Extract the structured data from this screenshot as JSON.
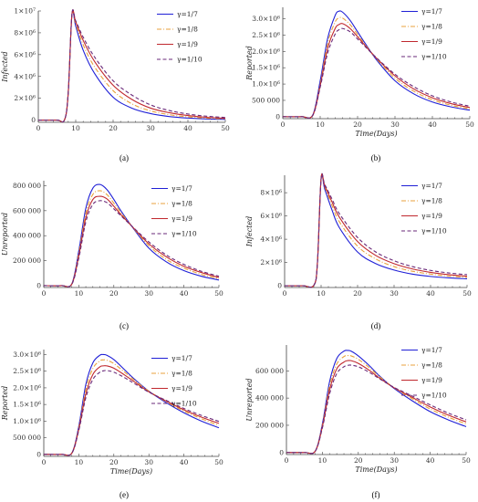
{
  "legend_labels": [
    "γ=1/7",
    "γ=1/8",
    "γ=1/9",
    "γ=1/10"
  ],
  "series_colors": [
    "#1f1fd6",
    "#e8a23c",
    "#c0282e",
    "#6a2a7a"
  ],
  "series_dash": [
    "solid",
    "dash-dot",
    "solid",
    "dash"
  ],
  "chart_data": [
    {
      "panel": "(a)",
      "type": "line",
      "ylabel": "Infected",
      "xlabel": "",
      "xlim": [
        0,
        50
      ],
      "ylim": [
        -200000,
        10000000
      ],
      "xticks": [
        0,
        10,
        20,
        30,
        40,
        50
      ],
      "yticks": [
        {
          "v": 0,
          "t": "0"
        },
        {
          "v": 2000000,
          "t": "2×10⁶"
        },
        {
          "v": 4000000,
          "t": "4×10⁶"
        },
        {
          "v": 6000000,
          "t": "6×10⁶"
        },
        {
          "v": 8000000,
          "t": "8×10⁶"
        },
        {
          "v": 10000000,
          "t": "1×10⁷"
        }
      ],
      "x": [
        0,
        5,
        7,
        8,
        9,
        10,
        12,
        15,
        20,
        25,
        30,
        35,
        40,
        45,
        50
      ],
      "series": [
        {
          "name": "γ=1/7",
          "values": [
            0,
            0,
            20000,
            2500000,
            9700000,
            8600000,
            6400000,
            4300000,
            2100000,
            1100000,
            600000,
            330000,
            190000,
            110000,
            70000
          ]
        },
        {
          "name": "γ=1/8",
          "values": [
            0,
            0,
            20000,
            2500000,
            9700000,
            8800000,
            6900000,
            4900000,
            2700000,
            1500000,
            850000,
            500000,
            300000,
            180000,
            120000
          ]
        },
        {
          "name": "γ=1/9",
          "values": [
            0,
            0,
            20000,
            2500000,
            9700000,
            9000000,
            7300000,
            5400000,
            3200000,
            1900000,
            1100000,
            680000,
            420000,
            260000,
            170000
          ]
        },
        {
          "name": "γ=1/10",
          "values": [
            0,
            0,
            20000,
            2500000,
            9700000,
            9100000,
            7600000,
            5800000,
            3600000,
            2300000,
            1400000,
            880000,
            560000,
            360000,
            240000
          ]
        }
      ]
    },
    {
      "panel": "(b)",
      "type": "line",
      "ylabel": "Reported",
      "xlabel": "Time(Days)",
      "xlim": [
        0,
        50
      ],
      "ylim": [
        -60000,
        3350000
      ],
      "xticks": [
        0,
        10,
        20,
        30,
        40,
        50
      ],
      "yticks": [
        {
          "v": 0,
          "t": "0"
        },
        {
          "v": 500000,
          "t": "500 000"
        },
        {
          "v": 1000000,
          "t": "1.0×10⁶"
        },
        {
          "v": 1500000,
          "t": "1.5×10⁶"
        },
        {
          "v": 2000000,
          "t": "2.0×10⁶"
        },
        {
          "v": 2500000,
          "t": "2.5×10⁶"
        },
        {
          "v": 3000000,
          "t": "3.0×10⁶"
        }
      ],
      "x": [
        0,
        5,
        8,
        10,
        12,
        14,
        15,
        16,
        18,
        20,
        22,
        25,
        30,
        35,
        40,
        45,
        50
      ],
      "series": [
        {
          "name": "γ=1/7",
          "values": [
            0,
            0,
            50000,
            1100000,
            2400000,
            3100000,
            3230000,
            3200000,
            2950000,
            2600000,
            2250000,
            1750000,
            1100000,
            700000,
            450000,
            300000,
            200000
          ]
        },
        {
          "name": "γ=1/8",
          "values": [
            0,
            0,
            45000,
            1000000,
            2250000,
            2900000,
            3020000,
            3020000,
            2820000,
            2520000,
            2210000,
            1780000,
            1180000,
            780000,
            520000,
            350000,
            240000
          ]
        },
        {
          "name": "γ=1/9",
          "values": [
            0,
            0,
            40000,
            950000,
            2100000,
            2700000,
            2820000,
            2850000,
            2700000,
            2450000,
            2180000,
            1800000,
            1250000,
            850000,
            580000,
            400000,
            280000
          ]
        },
        {
          "name": "γ=1/10",
          "values": [
            0,
            0,
            35000,
            900000,
            1950000,
            2530000,
            2660000,
            2700000,
            2600000,
            2380000,
            2150000,
            1810000,
            1300000,
            920000,
            640000,
            450000,
            320000
          ]
        }
      ]
    },
    {
      "panel": "(c)",
      "type": "line",
      "ylabel": "Unreported",
      "xlabel": "",
      "xlim": [
        0,
        50
      ],
      "ylim": [
        -15000,
        840000
      ],
      "xticks": [
        0,
        10,
        20,
        30,
        40,
        50
      ],
      "yticks": [
        {
          "v": 0,
          "t": "0"
        },
        {
          "v": 200000,
          "t": "200 000"
        },
        {
          "v": 400000,
          "t": "400 000"
        },
        {
          "v": 600000,
          "t": "600 000"
        },
        {
          "v": 800000,
          "t": "800 000"
        }
      ],
      "x": [
        0,
        5,
        8,
        10,
        12,
        14,
        16,
        18,
        20,
        22,
        25,
        30,
        35,
        40,
        45,
        50
      ],
      "series": [
        {
          "name": "γ=1/7",
          "values": [
            0,
            0,
            15000,
            280000,
            620000,
            780000,
            810000,
            770000,
            690000,
            600000,
            480000,
            300000,
            190000,
            120000,
            75000,
            45000
          ]
        },
        {
          "name": "γ=1/8",
          "values": [
            0,
            0,
            13000,
            260000,
            580000,
            730000,
            760000,
            730000,
            660000,
            585000,
            480000,
            320000,
            210000,
            140000,
            90000,
            55000
          ]
        },
        {
          "name": "γ=1/9",
          "values": [
            0,
            0,
            12000,
            240000,
            545000,
            690000,
            715000,
            695000,
            635000,
            570000,
            480000,
            335000,
            230000,
            155000,
            105000,
            65000
          ]
        },
        {
          "name": "γ=1/10",
          "values": [
            0,
            0,
            11000,
            220000,
            510000,
            650000,
            680000,
            665000,
            615000,
            560000,
            480000,
            350000,
            245000,
            170000,
            115000,
            75000
          ]
        }
      ]
    },
    {
      "panel": "(d)",
      "type": "line",
      "ylabel": "Infected",
      "xlabel": "",
      "xlim": [
        0,
        50
      ],
      "ylim": [
        -150000,
        9500000
      ],
      "xticks": [
        0,
        10,
        20,
        30,
        40,
        50
      ],
      "yticks": [
        {
          "v": 0,
          "t": "0"
        },
        {
          "v": 2000000,
          "t": "2×10⁶"
        },
        {
          "v": 4000000,
          "t": "4×10⁶"
        },
        {
          "v": 6000000,
          "t": "6×10⁶"
        },
        {
          "v": 8000000,
          "t": "8×10⁶"
        }
      ],
      "x": [
        0,
        5,
        8,
        9,
        10,
        11,
        13,
        15,
        20,
        25,
        30,
        35,
        40,
        45,
        50
      ],
      "series": [
        {
          "name": "γ=1/7",
          "values": [
            0,
            0,
            30000,
            2000000,
            9200000,
            8300000,
            6500000,
            5000000,
            2900000,
            1900000,
            1350000,
            1000000,
            800000,
            680000,
            600000
          ]
        },
        {
          "name": "γ=1/8",
          "values": [
            0,
            0,
            30000,
            2000000,
            9200000,
            8500000,
            6900000,
            5500000,
            3400000,
            2300000,
            1650000,
            1250000,
            1000000,
            830000,
            720000
          ]
        },
        {
          "name": "γ=1/9",
          "values": [
            0,
            0,
            30000,
            2000000,
            9200000,
            8600000,
            7200000,
            5900000,
            3800000,
            2600000,
            1900000,
            1450000,
            1150000,
            950000,
            820000
          ]
        },
        {
          "name": "γ=1/10",
          "values": [
            0,
            0,
            30000,
            2000000,
            9200000,
            8700000,
            7450000,
            6200000,
            4150000,
            2900000,
            2150000,
            1650000,
            1320000,
            1100000,
            950000
          ]
        }
      ]
    },
    {
      "panel": "(e)",
      "type": "line",
      "ylabel": "Reported",
      "xlabel": "Time(Days)",
      "xlim": [
        0,
        50
      ],
      "ylim": [
        -60000,
        3150000
      ],
      "xticks": [
        0,
        10,
        20,
        30,
        40,
        50
      ],
      "yticks": [
        {
          "v": 0,
          "t": "0"
        },
        {
          "v": 500000,
          "t": "500 000"
        },
        {
          "v": 1000000,
          "t": "1.0×10⁶"
        },
        {
          "v": 1500000,
          "t": "1.5×10⁶"
        },
        {
          "v": 2000000,
          "t": "2.0×10⁶"
        },
        {
          "v": 2500000,
          "t": "2.5×10⁶"
        },
        {
          "v": 3000000,
          "t": "3.0×10⁶"
        }
      ],
      "x": [
        0,
        5,
        8,
        10,
        12,
        14,
        16,
        17,
        18,
        20,
        23,
        26,
        30,
        35,
        40,
        45,
        50
      ],
      "series": [
        {
          "name": "γ=1/7",
          "values": [
            0,
            0,
            40000,
            850000,
            2100000,
            2750000,
            2980000,
            3000000,
            2980000,
            2850000,
            2550000,
            2250000,
            1900000,
            1550000,
            1250000,
            1000000,
            800000
          ]
        },
        {
          "name": "γ=1/8",
          "values": [
            0,
            0,
            38000,
            800000,
            1950000,
            2580000,
            2810000,
            2840000,
            2830000,
            2730000,
            2480000,
            2220000,
            1900000,
            1580000,
            1300000,
            1070000,
            870000
          ]
        },
        {
          "name": "γ=1/9",
          "values": [
            0,
            0,
            35000,
            760000,
            1820000,
            2400000,
            2630000,
            2660000,
            2660000,
            2590000,
            2390000,
            2170000,
            1880000,
            1600000,
            1340000,
            1120000,
            930000
          ]
        },
        {
          "name": "γ=1/10",
          "values": [
            0,
            0,
            33000,
            720000,
            1700000,
            2250000,
            2470000,
            2510000,
            2520000,
            2470000,
            2310000,
            2120000,
            1870000,
            1620000,
            1380000,
            1170000,
            990000
          ]
        }
      ]
    },
    {
      "panel": "(f)",
      "type": "line",
      "ylabel": "Unreported",
      "xlabel": "Time(Days)",
      "xlim": [
        0,
        50
      ],
      "ylim": [
        -15000,
        790000
      ],
      "xticks": [
        0,
        10,
        20,
        30,
        40,
        50
      ],
      "yticks": [
        {
          "v": 0,
          "t": "0"
        },
        {
          "v": 200000,
          "t": "200 000"
        },
        {
          "v": 400000,
          "t": "400 000"
        },
        {
          "v": 600000,
          "t": "600 000"
        }
      ],
      "x": [
        0,
        5,
        8,
        10,
        12,
        14,
        16,
        17,
        18,
        20,
        23,
        26,
        30,
        35,
        40,
        45,
        50
      ],
      "series": [
        {
          "name": "γ=1/7",
          "values": [
            0,
            0,
            10000,
            210000,
            520000,
            690000,
            745000,
            750000,
            745000,
            710000,
            640000,
            560000,
            470000,
            380000,
            300000,
            240000,
            190000
          ]
        },
        {
          "name": "γ=1/8",
          "values": [
            0,
            0,
            9500,
            200000,
            490000,
            650000,
            705000,
            712000,
            710000,
            685000,
            625000,
            555000,
            475000,
            395000,
            320000,
            260000,
            210000
          ]
        },
        {
          "name": "γ=1/9",
          "values": [
            0,
            0,
            9000,
            190000,
            460000,
            615000,
            665000,
            675000,
            675000,
            655000,
            605000,
            545000,
            475000,
            405000,
            335000,
            275000,
            225000
          ]
        },
        {
          "name": "γ=1/10",
          "values": [
            0,
            0,
            8500,
            180000,
            430000,
            580000,
            630000,
            640000,
            642000,
            630000,
            590000,
            540000,
            478000,
            415000,
            350000,
            290000,
            240000
          ]
        }
      ]
    }
  ]
}
